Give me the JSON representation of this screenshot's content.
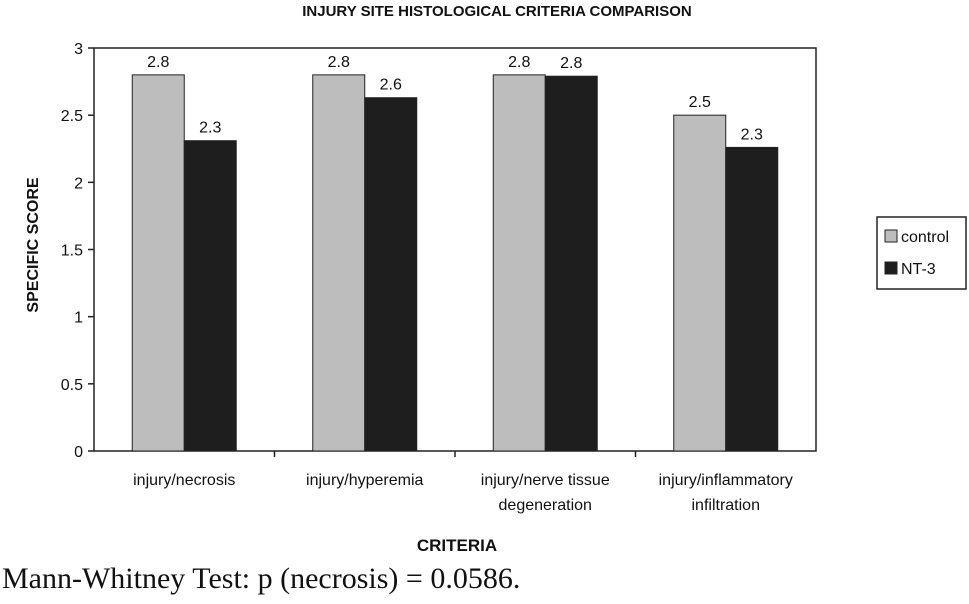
{
  "chart_data": {
    "type": "bar",
    "title": "INJURY SITE HISTOLOGICAL CRITERIA COMPARISON",
    "xlabel": "CRITERIA",
    "ylabel": "SPECIFIC SCORE",
    "ylim": [
      0,
      3
    ],
    "yticks": [
      "0",
      "0.5",
      "1",
      "1.5",
      "2",
      "2.5",
      "3"
    ],
    "grid": false,
    "legend_position": "right",
    "categories": [
      [
        "injury/necrosis"
      ],
      [
        "injury/hyperemia"
      ],
      [
        "injury/nerve tissue",
        "degeneration"
      ],
      [
        "injury/inflammatory",
        "infiltration"
      ]
    ],
    "series": [
      {
        "name": "control",
        "color": "#bdbdbd",
        "values": [
          2.8,
          2.8,
          2.8,
          2.5
        ],
        "labels": [
          "2.8",
          "2.8",
          "2.8",
          "2.5"
        ]
      },
      {
        "name": "NT-3",
        "color": "#1e1e1e",
        "values": [
          2.31,
          2.63,
          2.79,
          2.26
        ],
        "labels": [
          "2.3",
          "2.6",
          "2.8",
          "2.3"
        ]
      }
    ]
  },
  "footnote": "Mann-Whitney Test: p (necrosis) = 0.0586."
}
